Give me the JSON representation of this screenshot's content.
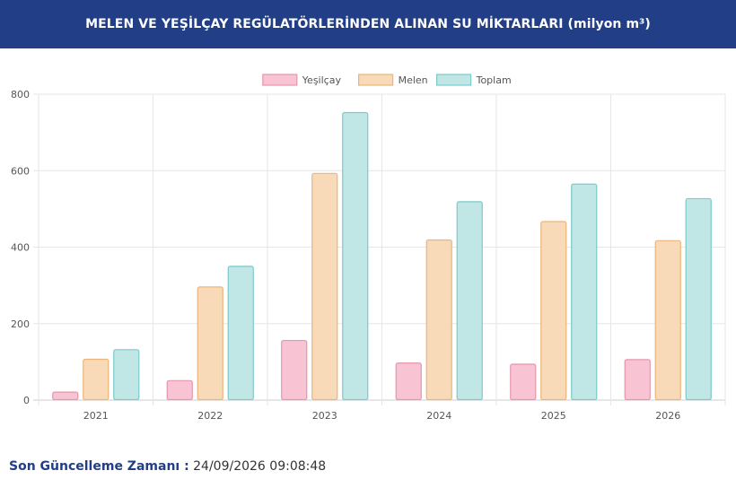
{
  "header": {
    "title": "MELEN VE YEŞİLÇAY REGÜLATÖRLERİNDEN ALINAN SU MİKTARLARI (milyon m³)"
  },
  "footer": {
    "label": "Son Güncelleme Zamanı :",
    "value": "24/09/2026 09:08:48"
  },
  "chart_data": {
    "type": "bar",
    "categories": [
      "2021",
      "2022",
      "2023",
      "2024",
      "2025",
      "2026"
    ],
    "series": [
      {
        "name": "Yeşilçay",
        "values": [
          22,
          52,
          157,
          98,
          95,
          107
        ],
        "color": "#f8c4d4",
        "border": "#e595ad"
      },
      {
        "name": "Melen",
        "values": [
          108,
          297,
          594,
          420,
          468,
          418
        ],
        "color": "#f9dab8",
        "border": "#ebb57a"
      },
      {
        "name": "Toplam",
        "values": [
          133,
          351,
          753,
          520,
          566,
          528
        ],
        "color": "#c0e6e6",
        "border": "#7ccaca"
      }
    ],
    "ylim": [
      0,
      800
    ],
    "yticks": [
      0,
      200,
      400,
      600,
      800
    ],
    "grid": true,
    "legend": "top-center"
  }
}
